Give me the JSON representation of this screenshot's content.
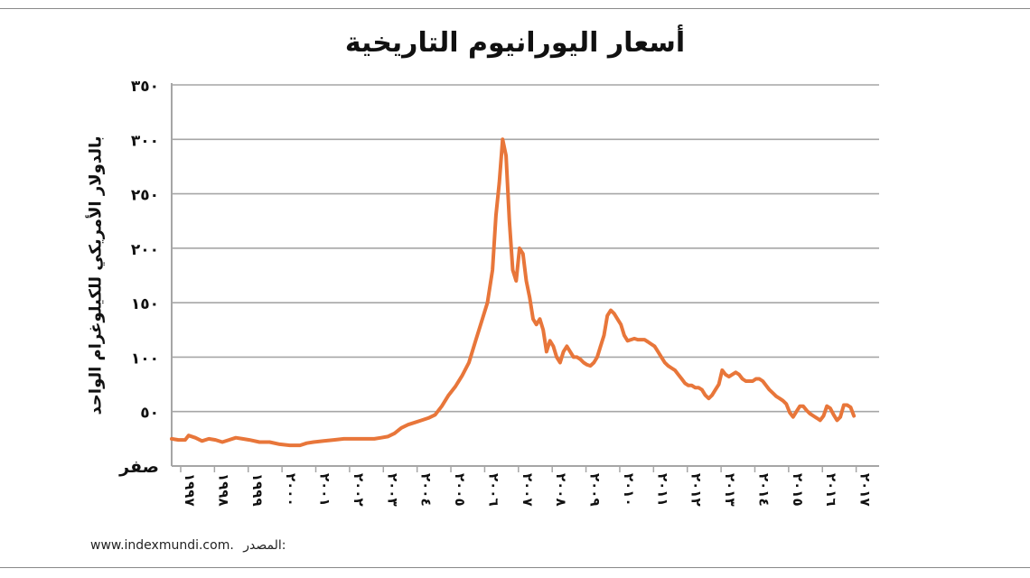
{
  "chart_data": {
    "type": "line",
    "title": "أسعار اليورانيوم التاريخية",
    "ylabel": "بالدولار الأمريكي للكيلوغرام الواحد",
    "xlabel": "",
    "ylim": [
      0,
      350
    ],
    "y_ticks": [
      {
        "value": 0,
        "label": "صفر"
      },
      {
        "value": 50,
        "label": "٥٠"
      },
      {
        "value": 100,
        "label": "١٠٠"
      },
      {
        "value": 150,
        "label": "١٥٠"
      },
      {
        "value": 200,
        "label": "٢٠٠"
      },
      {
        "value": 250,
        "label": "٢٥٠"
      },
      {
        "value": 300,
        "label": "٣٠٠"
      },
      {
        "value": 350,
        "label": "٣٥٠"
      }
    ],
    "xlim": [
      1997,
      2018
    ],
    "x_ticks": [
      {
        "value": 1997,
        "label": "١٩٩٧"
      },
      {
        "value": 1998,
        "label": "١٩٩٨"
      },
      {
        "value": 1999,
        "label": "١٩٩٩"
      },
      {
        "value": 2000,
        "label": "٢٠٠٠"
      },
      {
        "value": 2001,
        "label": "٢٠٠١"
      },
      {
        "value": 2002,
        "label": "٢٠٠٢"
      },
      {
        "value": 2003,
        "label": "٢٠٠٣"
      },
      {
        "value": 2004,
        "label": "٢٠٠٤"
      },
      {
        "value": 2005,
        "label": "٢٠٠٥"
      },
      {
        "value": 2006,
        "label": "٢٠٠٦"
      },
      {
        "value": 2007,
        "label": "٢٠٠٧"
      },
      {
        "value": 2008,
        "label": "٢٠٠٨"
      },
      {
        "value": 2009,
        "label": "٢٠٠٩"
      },
      {
        "value": 2010,
        "label": "٢٠١٠"
      },
      {
        "value": 2011,
        "label": "٢٠١١"
      },
      {
        "value": 2012,
        "label": "٢٠١٢"
      },
      {
        "value": 2013,
        "label": "٢٠١٣"
      },
      {
        "value": 2014,
        "label": "٢٠١٤"
      },
      {
        "value": 2015,
        "label": "٢٠١٥"
      },
      {
        "value": 2016,
        "label": "٢٠١٦"
      },
      {
        "value": 2017,
        "label": "٢٠١٧"
      }
    ],
    "grid": true,
    "legend": "none",
    "series": [
      {
        "color": "#e8763a",
        "x": [
          1997.0,
          1997.2,
          1997.4,
          1997.5,
          1997.7,
          1997.9,
          1998.1,
          1998.3,
          1998.5,
          1998.7,
          1998.9,
          1999.1,
          1999.3,
          1999.6,
          1999.9,
          2000.2,
          2000.5,
          2000.8,
          2001.0,
          2001.2,
          2001.5,
          2001.8,
          2002.1,
          2002.4,
          2002.7,
          2003.0,
          2003.2,
          2003.4,
          2003.6,
          2003.8,
          2004.0,
          2004.2,
          2004.4,
          2004.6,
          2004.8,
          2005.0,
          2005.2,
          2005.4,
          2005.6,
          2005.8,
          2006.0,
          2006.2,
          2006.35,
          2006.5,
          2006.6,
          2006.7,
          2006.8,
          2006.9,
          2007.0,
          2007.1,
          2007.2,
          2007.3,
          2007.4,
          2007.5,
          2007.6,
          2007.7,
          2007.8,
          2007.9,
          2008.0,
          2008.1,
          2008.2,
          2008.3,
          2008.4,
          2008.5,
          2008.6,
          2008.7,
          2008.8,
          2008.9,
          2009.0,
          2009.1,
          2009.2,
          2009.3,
          2009.4,
          2009.5,
          2009.6,
          2009.7,
          2009.8,
          2009.9,
          2010.0,
          2010.1,
          2010.2,
          2010.3,
          2010.4,
          2010.5,
          2010.6,
          2010.7,
          2010.8,
          2010.9,
          2011.0,
          2011.1,
          2011.2,
          2011.3,
          2011.4,
          2011.5,
          2011.6,
          2011.7,
          2011.8,
          2011.9,
          2012.0,
          2012.1,
          2012.2,
          2012.3,
          2012.4,
          2012.5,
          2012.6,
          2012.7,
          2012.8,
          2012.9,
          2013.0,
          2013.1,
          2013.2,
          2013.3,
          2013.4,
          2013.5,
          2013.6,
          2013.7,
          2013.8,
          2013.9,
          2014.0,
          2014.1,
          2014.2,
          2014.3,
          2014.4,
          2014.5,
          2014.6,
          2014.7,
          2014.8,
          2014.9,
          2015.0,
          2015.1,
          2015.2,
          2015.3,
          2015.4,
          2015.5,
          2015.6,
          2015.7,
          2015.8,
          2015.9,
          2016.0,
          2016.1,
          2016.2,
          2016.3,
          2016.4,
          2016.5,
          2016.6,
          2016.7,
          2016.8,
          2016.9,
          2017.0,
          2017.1,
          2017.2
        ],
        "y": [
          25,
          24,
          24,
          28,
          26,
          23,
          25,
          24,
          22,
          24,
          26,
          25,
          24,
          22,
          22,
          20,
          19,
          19,
          21,
          22,
          23,
          24,
          25,
          25,
          25,
          25,
          26,
          27,
          30,
          35,
          38,
          40,
          42,
          44,
          47,
          55,
          65,
          73,
          83,
          95,
          115,
          135,
          150,
          180,
          230,
          260,
          300,
          285,
          225,
          180,
          170,
          200,
          195,
          170,
          155,
          135,
          130,
          135,
          125,
          105,
          115,
          110,
          100,
          95,
          105,
          110,
          105,
          100,
          100,
          98,
          95,
          93,
          92,
          95,
          100,
          110,
          120,
          138,
          143,
          140,
          135,
          130,
          120,
          115,
          116,
          117,
          116,
          116,
          116,
          114,
          112,
          110,
          105,
          100,
          95,
          92,
          90,
          88,
          84,
          80,
          76,
          74,
          74,
          72,
          72,
          70,
          65,
          62,
          65,
          70,
          75,
          88,
          84,
          82,
          84,
          86,
          84,
          80,
          78,
          78,
          78,
          80,
          80,
          78,
          74,
          70,
          67,
          64,
          62,
          60,
          57,
          49,
          45,
          50,
          55,
          55,
          51,
          48,
          46,
          44,
          42,
          46,
          55,
          53,
          47,
          42,
          45,
          56,
          56,
          54,
          46
        ]
      }
    ]
  },
  "source": {
    "label": "المصدر:",
    "value": "www.indexmundi.com."
  }
}
